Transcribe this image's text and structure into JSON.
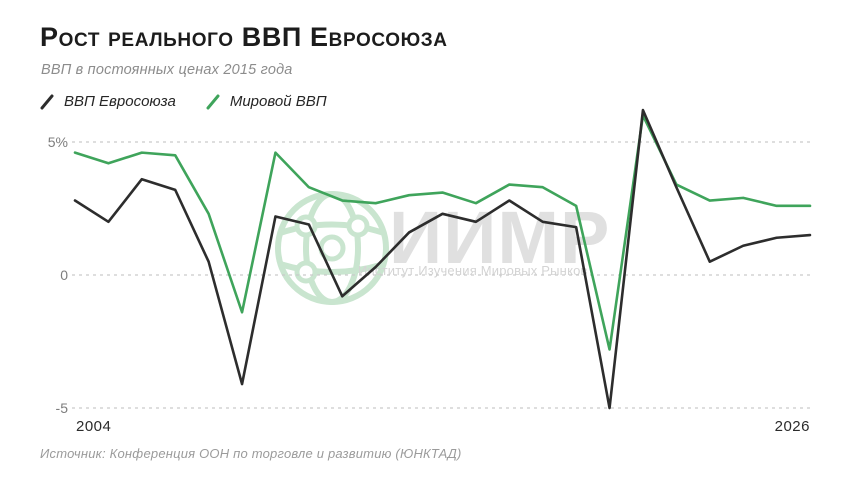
{
  "header": {
    "title": "Рост реального ВВП Евросоюза",
    "subtitle": "ВВП в постоянных ценах 2015 года"
  },
  "legend": [
    {
      "label": "ВВП Евросоюза",
      "color": "#2d2d2d"
    },
    {
      "label": "Мировой ВВП",
      "color": "#3fa45b"
    }
  ],
  "watermark": {
    "acronym": "ИИМР",
    "tagline": "Институт Изучения Мировых Рынков",
    "globe_icon_color": "#c9e5cf",
    "text_color": "#e0e0e0"
  },
  "source": "Источник: Конференция ООН по торговле и развитию (ЮНКТАД)",
  "colors": {
    "eu_line": "#2d2d2d",
    "world_line": "#3fa45b",
    "gridline": "#c9c9c9"
  },
  "chart_data": {
    "type": "line",
    "title": "Рост реального ВВП Евросоюза",
    "subtitle": "ВВП в постоянных ценах 2015 года",
    "x": [
      2004,
      2005,
      2006,
      2007,
      2008,
      2009,
      2010,
      2011,
      2012,
      2013,
      2014,
      2015,
      2016,
      2017,
      2018,
      2019,
      2020,
      2021,
      2022,
      2023,
      2024,
      2025,
      2026
    ],
    "series": [
      {
        "name": "ВВП Евросоюза",
        "color": "#2d2d2d",
        "values": [
          2.8,
          2.0,
          3.6,
          3.2,
          0.5,
          -4.1,
          2.2,
          1.9,
          -0.8,
          0.3,
          1.6,
          2.3,
          2.0,
          2.8,
          2.0,
          1.8,
          -5.0,
          6.2,
          3.3,
          0.5,
          1.1,
          1.4,
          1.5
        ]
      },
      {
        "name": "Мировой ВВП",
        "color": "#3fa45b",
        "values": [
          4.6,
          4.2,
          4.6,
          4.5,
          2.3,
          -1.4,
          4.6,
          3.3,
          2.8,
          2.7,
          3.0,
          3.1,
          2.7,
          3.4,
          3.3,
          2.6,
          -2.8,
          6.0,
          3.4,
          2.8,
          2.9,
          2.6,
          2.6
        ]
      }
    ],
    "ylabel": "",
    "xlabel": "",
    "ylim": [
      -5.5,
      6.5
    ],
    "grid": "horizontal-dashed",
    "legend_position": "top-left",
    "yticks": [
      {
        "value": 5,
        "label": "5%"
      },
      {
        "value": 0,
        "label": "0"
      },
      {
        "value": -5,
        "label": "-5"
      }
    ],
    "xticks": [
      {
        "x": 2004,
        "label": "2004"
      },
      {
        "x": 2026,
        "label": "2026"
      }
    ]
  }
}
